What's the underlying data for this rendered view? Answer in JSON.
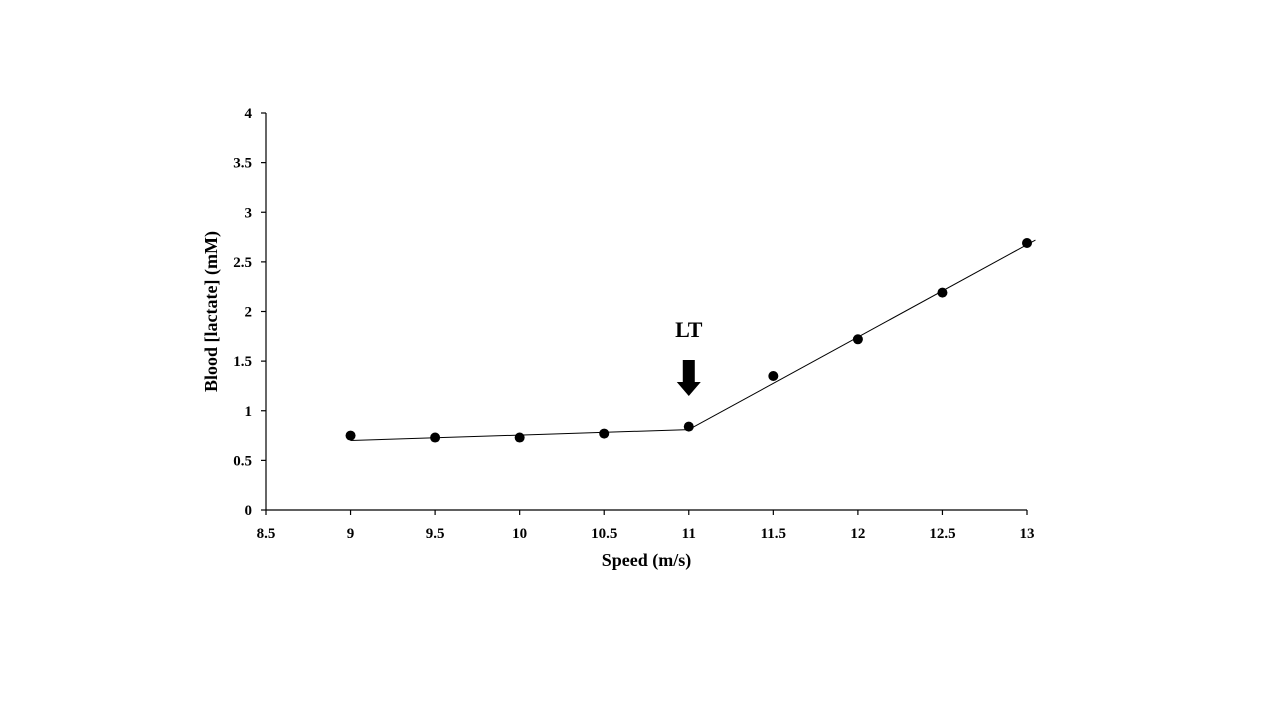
{
  "chart_data": {
    "type": "scatter",
    "title": "",
    "xlabel": "Speed (m/s)",
    "ylabel": "Blood [lactate] (mM)",
    "xlim": [
      8.5,
      13
    ],
    "ylim": [
      0,
      4
    ],
    "x_ticks": [
      "8.5",
      "9",
      "9.5",
      "10",
      "10.5",
      "11",
      "11.5",
      "12",
      "12.5",
      "13"
    ],
    "y_ticks": [
      "0",
      "0.5",
      "1",
      "1.5",
      "2",
      "2.5",
      "3",
      "3.5",
      "4"
    ],
    "grid": false,
    "legend": "none",
    "series": [
      {
        "x": [
          9,
          9.5,
          10,
          10.5,
          11,
          11.5,
          12,
          12.5,
          13
        ],
        "y": [
          0.75,
          0.73,
          0.73,
          0.77,
          0.84,
          1.35,
          1.72,
          2.19,
          2.69
        ]
      }
    ],
    "fit_lines": [
      {
        "x": [
          9,
          11
        ],
        "y": [
          0.7,
          0.81
        ]
      },
      {
        "x": [
          11,
          13.05
        ],
        "y": [
          0.81,
          2.72
        ]
      }
    ],
    "annotations": [
      {
        "text": "LT",
        "x": 11,
        "arrow": "down"
      }
    ],
    "colors": {
      "points": "#000000",
      "lines": "#000000",
      "axes": "#000000"
    }
  }
}
